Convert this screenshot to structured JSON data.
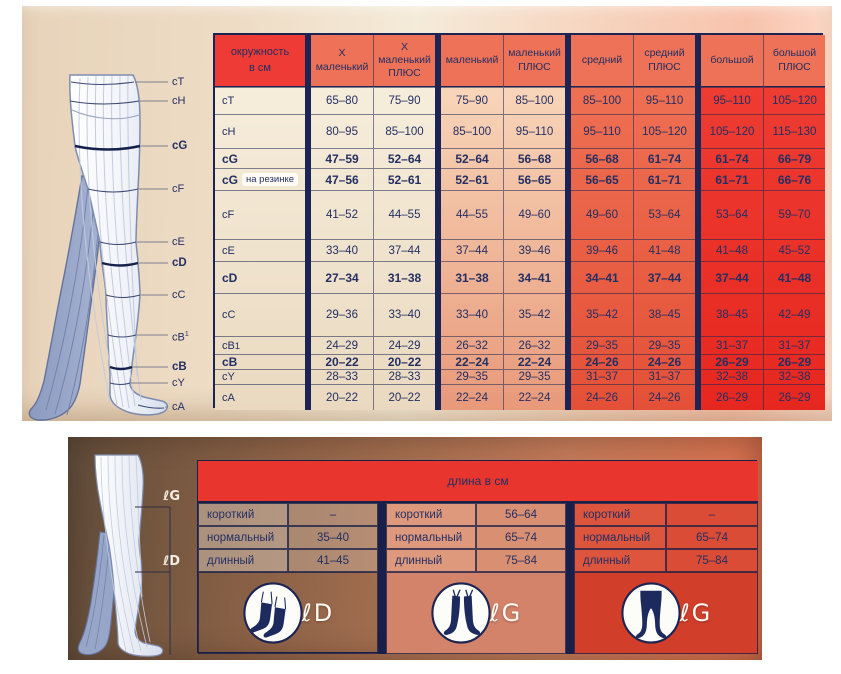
{
  "colors": {
    "navy": "#1b2452",
    "text_navy": "#232f63",
    "bright_red": "#ee3b36",
    "salmon_header": "#ed7257",
    "cream": "#f2e8d5",
    "peach_column": "#f0b897",
    "medium_red_column": "#e95f44",
    "big_red_column": "#ea3028",
    "bottom_header_red": "#e8362f",
    "bottom_section2": "#d98f72",
    "bottom_section3": "#da4c35",
    "panel_brown": "#8a6148"
  },
  "top_panel": {
    "corner_header": "окружность\nв см",
    "col_headers": [
      "X\nмаленький",
      "X\nмаленький\nПЛЮС",
      "маленький",
      "маленький\nПЛЮС",
      "средний",
      "средний\nПЛЮС",
      "большой",
      "большой\nПЛЮС"
    ],
    "leg_labels": [
      {
        "text": "cT",
        "sup": "",
        "bold": false
      },
      {
        "text": "cH",
        "sup": "",
        "bold": false
      },
      {
        "text": "cG",
        "sup": "",
        "bold": true
      },
      {
        "text": "cF",
        "sup": "",
        "bold": false
      },
      {
        "text": "cE",
        "sup": "",
        "bold": false
      },
      {
        "text": "cD",
        "sup": "",
        "bold": true
      },
      {
        "text": "cC",
        "sup": "",
        "bold": false
      },
      {
        "text": "cB",
        "sup": "1",
        "bold": false
      },
      {
        "text": "cB",
        "sup": "",
        "bold": true
      },
      {
        "text": "cY",
        "sup": "",
        "bold": false
      },
      {
        "text": "cA",
        "sup": "",
        "bold": false
      }
    ],
    "rows": [
      {
        "label": "cT",
        "sup": "",
        "note": "",
        "bold": false,
        "values": [
          "65–80",
          "75–90",
          "75–90",
          "85–100",
          "85–100",
          "95–110",
          "95–110",
          "105–120"
        ]
      },
      {
        "label": "cH",
        "sup": "",
        "note": "",
        "bold": false,
        "values": [
          "80–95",
          "85–100",
          "85–100",
          "95–110",
          "95–110",
          "105–120",
          "105–120",
          "115–130"
        ]
      },
      {
        "label": "cG",
        "sup": "",
        "note": "",
        "bold": true,
        "values": [
          "47–59",
          "52–64",
          "52–64",
          "56–68",
          "56–68",
          "61–74",
          "61–74",
          "66–79"
        ]
      },
      {
        "label": "cG",
        "sup": "",
        "note": "на резинке",
        "bold": true,
        "values": [
          "47–56",
          "52–61",
          "52–61",
          "56–65",
          "56–65",
          "61–71",
          "61–71",
          "66–76"
        ]
      },
      {
        "label": "cF",
        "sup": "",
        "note": "",
        "bold": false,
        "values": [
          "41–52",
          "44–55",
          "44–55",
          "49–60",
          "49–60",
          "53–64",
          "53–64",
          "59–70"
        ]
      },
      {
        "label": "cE",
        "sup": "",
        "note": "",
        "bold": false,
        "values": [
          "33–40",
          "37–44",
          "37–44",
          "39–46",
          "39–46",
          "41–48",
          "41–48",
          "45–52"
        ]
      },
      {
        "label": "cD",
        "sup": "",
        "note": "",
        "bold": true,
        "values": [
          "27–34",
          "31–38",
          "31–38",
          "34–41",
          "34–41",
          "37–44",
          "37–44",
          "41–48"
        ]
      },
      {
        "label": "cC",
        "sup": "",
        "note": "",
        "bold": false,
        "values": [
          "29–36",
          "33–40",
          "33–40",
          "35–42",
          "35–42",
          "38–45",
          "38–45",
          "42–49"
        ]
      },
      {
        "label": "cB",
        "sup": "1",
        "note": "",
        "bold": false,
        "values": [
          "24–29",
          "24–29",
          "26–32",
          "26–32",
          "29–35",
          "29–35",
          "31–37",
          "31–37"
        ]
      },
      {
        "label": "cB",
        "sup": "",
        "note": "",
        "bold": true,
        "values": [
          "20–22",
          "20–22",
          "22–24",
          "22–24",
          "24–26",
          "24–26",
          "26–29",
          "26–29"
        ]
      },
      {
        "label": "cY",
        "sup": "",
        "note": "",
        "bold": false,
        "values": [
          "28–33",
          "28–33",
          "29–35",
          "29–35",
          "31–37",
          "31–37",
          "32–38",
          "32–38"
        ]
      },
      {
        "label": "cA",
        "sup": "",
        "note": "",
        "bold": false,
        "values": [
          "20–22",
          "20–22",
          "22–24",
          "22–24",
          "24–26",
          "24–26",
          "26–29",
          "26–29"
        ]
      }
    ]
  },
  "bottom_panel": {
    "header": "длина в см",
    "row_labels": [
      "короткий",
      "нормальный",
      "длинный"
    ],
    "sections": [
      {
        "icon": "knee-socks",
        "icon_label": "ℓD",
        "values": [
          "–",
          "35–40",
          "41–45"
        ]
      },
      {
        "icon": "thigh-stockings",
        "icon_label": "ℓG",
        "values": [
          "56–64",
          "65–74",
          "75–84"
        ]
      },
      {
        "icon": "tights",
        "icon_label": "ℓG",
        "values": [
          "–",
          "65–74",
          "75–84"
        ]
      }
    ],
    "diagram_labels": {
      "lG": "ℓG",
      "lD": "ℓD"
    }
  }
}
